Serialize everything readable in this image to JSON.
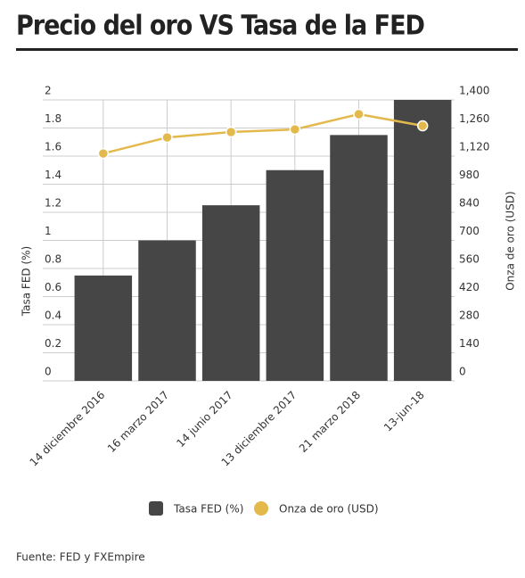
{
  "chart_data": {
    "type": "bar",
    "title": "Precio del oro VS Tasa de la FED",
    "categories": [
      "14 diciembre 2016",
      "16 marzo 2017",
      "14 junio 2017",
      "13 diciembre 2017",
      "21 marzo 2018",
      "13-jun-18"
    ],
    "series": [
      {
        "name": "Tasa FED (%)",
        "type": "bar",
        "color": "#464646",
        "values": [
          0.75,
          1,
          1.25,
          1.5,
          1.75,
          2
        ]
      },
      {
        "name": "Onza de oro (USD)",
        "type": "line",
        "axis": "y2",
        "color": "#e4b94c",
        "values": [
          1133,
          1213,
          1240,
          1253,
          1329,
          1271
        ]
      }
    ],
    "ylabel": "Tasa FED (%)",
    "y2label": "Onza de oro (USD)",
    "ylim": [
      0,
      2
    ],
    "yticks": [
      0,
      0.2,
      0.4,
      0.6,
      0.8,
      1,
      1.2,
      1.4,
      1.6,
      1.8,
      2
    ],
    "y2lim": [
      0,
      1400
    ],
    "y2ticks": [
      0,
      140,
      280,
      420,
      560,
      700,
      840,
      980,
      {
        "value": 1120,
        "label": "1,120"
      },
      {
        "value": 1260,
        "label": "1,260"
      },
      {
        "value": 1400,
        "label": "1,400"
      }
    ],
    "grid": true,
    "legend": "bottom",
    "source": "Fuente: FED y FXEmpire"
  }
}
